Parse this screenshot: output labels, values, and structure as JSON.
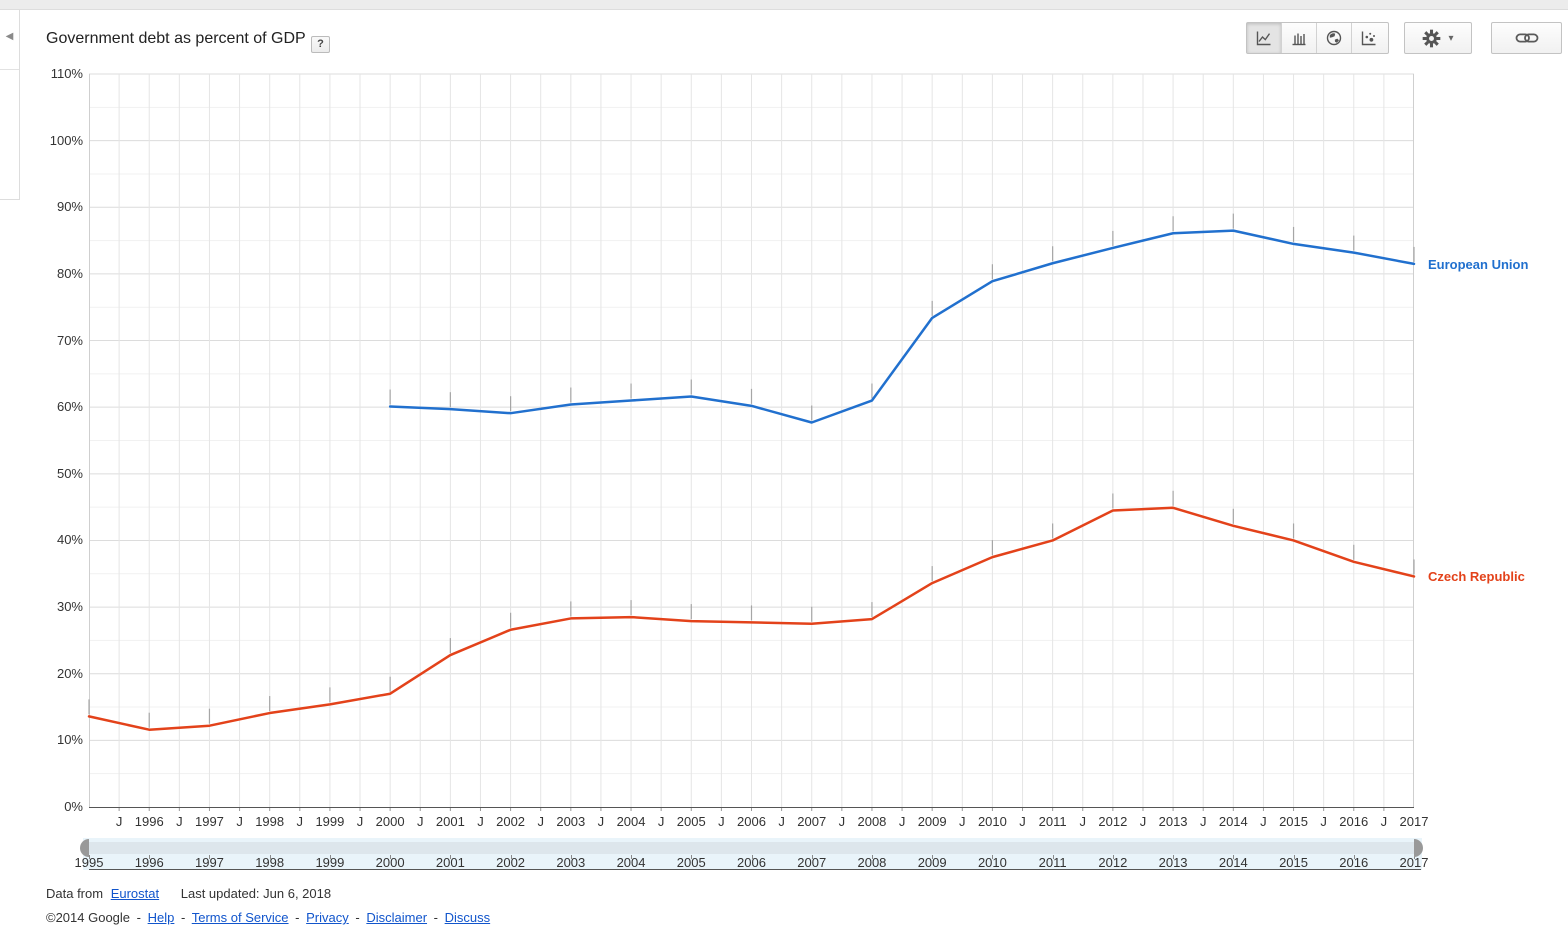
{
  "sidebar": {
    "collapse_icon": "◀"
  },
  "header": {
    "title": "Government debt as percent of GDP",
    "help_badge": "?"
  },
  "toolbar": {
    "chart_types": [
      {
        "name": "line-chart",
        "selected": true
      },
      {
        "name": "bar-chart",
        "selected": false
      },
      {
        "name": "map-chart",
        "selected": false
      },
      {
        "name": "bubble-chart",
        "selected": false
      }
    ],
    "settings_caret": "▾"
  },
  "chart_data": {
    "type": "line",
    "title": "Government debt as percent of GDP",
    "xlabel": "",
    "ylabel": "",
    "y_unit": "%",
    "ylim": [
      0,
      110
    ],
    "y_major_step": 10,
    "y_minor_step": 5,
    "xlim": [
      1995,
      2017
    ],
    "grid": true,
    "legend_position": "right",
    "x_mid_label": "J",
    "x_tick_years": [
      1996,
      1997,
      1998,
      1999,
      2000,
      2001,
      2002,
      2003,
      2004,
      2005,
      2006,
      2007,
      2008,
      2009,
      2010,
      2011,
      2012,
      2013,
      2014,
      2015,
      2016,
      2017
    ],
    "y_tick_labels": [
      "0%",
      "10%",
      "20%",
      "30%",
      "40%",
      "50%",
      "60%",
      "70%",
      "80%",
      "90%",
      "100%",
      "110%"
    ],
    "series": [
      {
        "name": "European Union",
        "color": "#2170ce",
        "start_year": 2000,
        "values": [
          60.1,
          59.7,
          59.1,
          60.4,
          61.0,
          61.6,
          60.2,
          57.7,
          61.0,
          73.4,
          78.9,
          81.6,
          83.9,
          86.1,
          86.5,
          84.5,
          83.2,
          81.5
        ]
      },
      {
        "name": "Czech Republic",
        "color": "#e3421a",
        "start_year": 1995,
        "values": [
          13.6,
          11.6,
          12.2,
          14.1,
          15.4,
          17.0,
          22.8,
          26.6,
          28.3,
          28.5,
          27.9,
          27.7,
          27.5,
          28.2,
          33.6,
          37.5,
          40.0,
          44.5,
          44.9,
          42.2,
          40.0,
          36.8,
          34.6
        ]
      }
    ]
  },
  "slider": {
    "years": [
      1995,
      1996,
      1997,
      1998,
      1999,
      2000,
      2001,
      2002,
      2003,
      2004,
      2005,
      2006,
      2007,
      2008,
      2009,
      2010,
      2011,
      2012,
      2013,
      2014,
      2015,
      2016,
      2017
    ]
  },
  "footer": {
    "data_from": "Data from",
    "source_link": "Eurostat",
    "last_updated": "Last updated: Jun 6, 2018",
    "copyright": "©2014 Google",
    "sep": "-",
    "links": [
      "Help",
      "Terms of Service",
      "Privacy",
      "Disclaimer",
      "Discuss"
    ]
  }
}
